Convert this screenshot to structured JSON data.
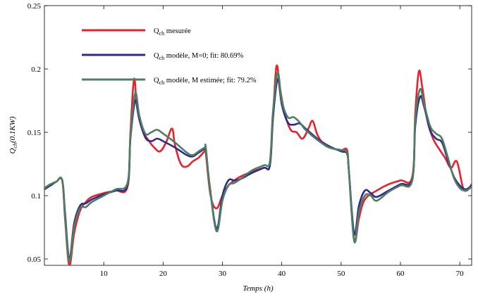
{
  "chart_data": {
    "type": "line",
    "title": "",
    "xlabel": "Temps (h)",
    "ylabel": "Q_ch(0.1KW)",
    "ylabel_main": "Q",
    "ylabel_sub": "ch",
    "ylabel_rest": "(0.1KW)",
    "xlim": [
      0,
      72
    ],
    "ylim": [
      0.045,
      0.25
    ],
    "xticks": [
      10,
      20,
      30,
      40,
      50,
      60,
      70
    ],
    "yticks": [
      0.05,
      0.1,
      0.15,
      0.2,
      0.25
    ],
    "ytick_labels": [
      "0.05",
      "0.1",
      "0.15",
      "0.2",
      "0.25"
    ],
    "grid": false,
    "legend_position": "top-left",
    "series": [
      {
        "name": "Q_ch mesurée",
        "label_main": "Q",
        "label_sub": "ch",
        "label_rest": " mesurée",
        "color": "#e8212b",
        "x": [
          0,
          1,
          2,
          3,
          3.5,
          4.2,
          5,
          6,
          7,
          8,
          10,
          12,
          14,
          14.5,
          15.1,
          15.6,
          16.5,
          17.5,
          18.5,
          19.5,
          20.5,
          21.5,
          22,
          23,
          24,
          25,
          26,
          27,
          27.2,
          28,
          29,
          30,
          31,
          32,
          33,
          35,
          37,
          38,
          38.5,
          39.1,
          39.7,
          40.5,
          41.5,
          42.5,
          43.5,
          44.5,
          45.2,
          46,
          47,
          48,
          50,
          51,
          51.3,
          52.2,
          53,
          54,
          56,
          58,
          60,
          62,
          62.5,
          63.1,
          63.7,
          64.5,
          65.5,
          66.5,
          67.5,
          68.5,
          69.5,
          70.5,
          71.2,
          72
        ],
        "y": [
          0.106,
          0.108,
          0.111,
          0.112,
          0.08,
          0.045,
          0.07,
          0.088,
          0.095,
          0.099,
          0.102,
          0.104,
          0.107,
          0.15,
          0.192,
          0.17,
          0.152,
          0.144,
          0.138,
          0.135,
          0.142,
          0.153,
          0.14,
          0.125,
          0.123,
          0.127,
          0.13,
          0.135,
          0.134,
          0.1,
          0.09,
          0.1,
          0.108,
          0.112,
          0.115,
          0.119,
          0.122,
          0.124,
          0.16,
          0.202,
          0.185,
          0.165,
          0.152,
          0.15,
          0.145,
          0.153,
          0.159,
          0.148,
          0.141,
          0.138,
          0.136,
          0.136,
          0.12,
          0.065,
          0.082,
          0.097,
          0.104,
          0.109,
          0.112,
          0.115,
          0.165,
          0.198,
          0.185,
          0.16,
          0.145,
          0.137,
          0.13,
          0.122,
          0.127,
          0.107,
          0.104,
          0.109
        ]
      },
      {
        "name": "Q_ch modèle, M=0; fit: 80.69%",
        "label_main": "Q",
        "label_sub": "ch",
        "label_rest": " modèle, M=0; fit: 80.69%",
        "color": "#2e2b8c",
        "x": [
          0,
          1,
          2,
          3,
          3.5,
          4.2,
          5,
          6,
          7,
          8,
          10,
          12,
          14,
          14.5,
          15.3,
          16,
          17,
          18,
          19,
          20,
          22,
          24,
          25,
          26,
          27,
          27.2,
          27.8,
          29,
          30,
          31,
          32,
          33,
          35,
          37,
          38,
          38.5,
          39.3,
          40,
          41,
          42,
          43,
          44,
          46,
          48,
          50,
          51,
          51.3,
          52.2,
          53,
          54,
          55,
          56,
          58,
          60,
          62,
          62.5,
          63.3,
          64,
          65,
          66,
          67,
          68,
          69,
          70,
          71,
          72
        ],
        "y": [
          0.105,
          0.108,
          0.111,
          0.112,
          0.085,
          0.05,
          0.078,
          0.092,
          0.094,
          0.097,
          0.101,
          0.104,
          0.108,
          0.145,
          0.175,
          0.16,
          0.146,
          0.143,
          0.145,
          0.143,
          0.138,
          0.132,
          0.131,
          0.134,
          0.137,
          0.137,
          0.11,
          0.074,
          0.1,
          0.112,
          0.112,
          0.113,
          0.118,
          0.122,
          0.124,
          0.16,
          0.192,
          0.172,
          0.158,
          0.156,
          0.157,
          0.153,
          0.145,
          0.139,
          0.135,
          0.133,
          0.12,
          0.07,
          0.092,
          0.104,
          0.102,
          0.099,
          0.104,
          0.109,
          0.113,
          0.155,
          0.178,
          0.17,
          0.152,
          0.145,
          0.142,
          0.128,
          0.115,
          0.108,
          0.105,
          0.108
        ]
      },
      {
        "name": "Q_ch modèle, M estimée; fit: 79.2%",
        "label_main": "Q",
        "label_sub": "ch",
        "label_rest": " modèle, M estimée; fit: 79.2%",
        "color": "#4e7f62",
        "x": [
          0,
          1,
          2,
          3,
          3.5,
          4.2,
          5,
          6,
          7,
          8,
          10,
          12,
          14,
          14.5,
          15.3,
          16,
          17,
          18,
          19,
          20,
          22,
          24,
          25,
          26,
          27,
          27.2,
          27.8,
          29,
          30,
          31,
          32,
          33,
          35,
          37,
          38,
          38.5,
          39.3,
          40,
          41,
          42,
          43,
          44,
          46,
          48,
          50,
          51,
          51.3,
          52.2,
          53,
          54,
          55,
          56,
          58,
          60,
          62,
          62.5,
          63.3,
          64,
          65,
          66,
          67,
          68,
          69,
          70,
          71,
          72
        ],
        "y": [
          0.106,
          0.109,
          0.111,
          0.112,
          0.082,
          0.048,
          0.075,
          0.09,
          0.091,
          0.095,
          0.1,
          0.105,
          0.11,
          0.147,
          0.181,
          0.163,
          0.149,
          0.15,
          0.152,
          0.149,
          0.142,
          0.134,
          0.132,
          0.135,
          0.138,
          0.138,
          0.11,
          0.072,
          0.096,
          0.108,
          0.11,
          0.113,
          0.12,
          0.124,
          0.127,
          0.165,
          0.197,
          0.175,
          0.162,
          0.162,
          0.158,
          0.152,
          0.144,
          0.138,
          0.136,
          0.134,
          0.12,
          0.064,
          0.087,
          0.1,
          0.1,
          0.096,
          0.103,
          0.108,
          0.112,
          0.16,
          0.184,
          0.172,
          0.155,
          0.149,
          0.145,
          0.13,
          0.114,
          0.106,
          0.104,
          0.107
        ]
      }
    ]
  }
}
